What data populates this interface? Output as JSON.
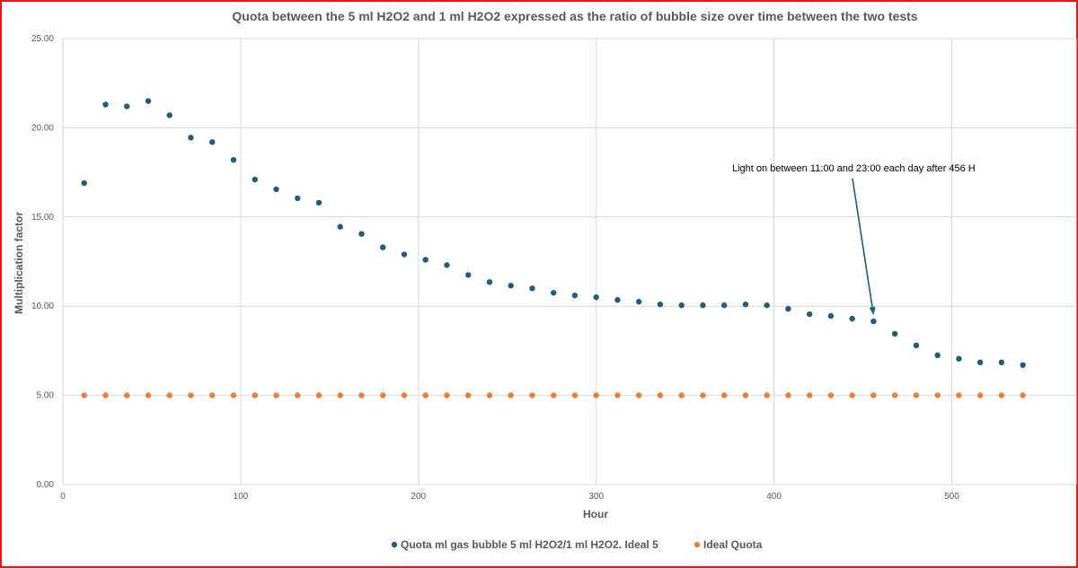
{
  "chart_data": {
    "type": "scatter",
    "title": "Quota between the 5 ml H2O2 and 1 ml H2O2 expressed as the ratio of bubble size over time between the two tests",
    "xlabel": "Hour",
    "ylabel": "Multiplication factor",
    "xlim": [
      0,
      570
    ],
    "ylim": [
      0,
      25
    ],
    "x_ticks": [
      "0",
      "100",
      "200",
      "300",
      "400",
      "500"
    ],
    "y_ticks": [
      "0.00",
      "5.00",
      "10.00",
      "15.00",
      "20.00",
      "25.00"
    ],
    "grid": "vertical and horizontal major gridlines",
    "legend_position": "bottom",
    "series": [
      {
        "name": "Quota ml gas bubble 5 ml H2O2/1 ml H2O2. Ideal 5",
        "color": "#1f5c80",
        "points": [
          [
            12,
            16.9
          ],
          [
            24,
            21.3
          ],
          [
            36,
            21.2
          ],
          [
            48,
            21.5
          ],
          [
            60,
            20.7
          ],
          [
            72,
            19.45
          ],
          [
            84,
            19.2
          ],
          [
            96,
            18.2
          ],
          [
            108,
            17.1
          ],
          [
            120,
            16.55
          ],
          [
            132,
            16.05
          ],
          [
            144,
            15.8
          ],
          [
            156,
            14.45
          ],
          [
            168,
            14.05
          ],
          [
            180,
            13.3
          ],
          [
            192,
            12.9
          ],
          [
            204,
            12.6
          ],
          [
            216,
            12.3
          ],
          [
            228,
            11.75
          ],
          [
            240,
            11.35
          ],
          [
            252,
            11.15
          ],
          [
            264,
            11.0
          ],
          [
            276,
            10.75
          ],
          [
            288,
            10.6
          ],
          [
            300,
            10.5
          ],
          [
            312,
            10.35
          ],
          [
            324,
            10.25
          ],
          [
            336,
            10.1
          ],
          [
            348,
            10.05
          ],
          [
            360,
            10.05
          ],
          [
            372,
            10.05
          ],
          [
            384,
            10.1
          ],
          [
            396,
            10.05
          ],
          [
            408,
            9.85
          ],
          [
            420,
            9.55
          ],
          [
            432,
            9.45
          ],
          [
            444,
            9.3
          ],
          [
            456,
            9.15
          ],
          [
            468,
            8.45
          ],
          [
            480,
            7.8
          ],
          [
            492,
            7.25
          ],
          [
            504,
            7.05
          ],
          [
            516,
            6.85
          ],
          [
            528,
            6.85
          ],
          [
            540,
            6.7
          ]
        ]
      },
      {
        "name": "Ideal Quota",
        "color": "#ed7d31",
        "points": [
          [
            12,
            5
          ],
          [
            24,
            5
          ],
          [
            36,
            5
          ],
          [
            48,
            5
          ],
          [
            60,
            5
          ],
          [
            72,
            5
          ],
          [
            84,
            5
          ],
          [
            96,
            5
          ],
          [
            108,
            5
          ],
          [
            120,
            5
          ],
          [
            132,
            5
          ],
          [
            144,
            5
          ],
          [
            156,
            5
          ],
          [
            168,
            5
          ],
          [
            180,
            5
          ],
          [
            192,
            5
          ],
          [
            204,
            5
          ],
          [
            216,
            5
          ],
          [
            228,
            5
          ],
          [
            240,
            5
          ],
          [
            252,
            5
          ],
          [
            264,
            5
          ],
          [
            276,
            5
          ],
          [
            288,
            5
          ],
          [
            300,
            5
          ],
          [
            312,
            5
          ],
          [
            324,
            5
          ],
          [
            336,
            5
          ],
          [
            348,
            5
          ],
          [
            360,
            5
          ],
          [
            372,
            5
          ],
          [
            384,
            5
          ],
          [
            396,
            5
          ],
          [
            408,
            5
          ],
          [
            420,
            5
          ],
          [
            432,
            5
          ],
          [
            444,
            5
          ],
          [
            456,
            5
          ],
          [
            468,
            5
          ],
          [
            480,
            5
          ],
          [
            492,
            5
          ],
          [
            504,
            5
          ],
          [
            516,
            5
          ],
          [
            528,
            5
          ],
          [
            540,
            5
          ]
        ]
      }
    ],
    "annotation": {
      "text": "Light on between 11:00 and 23:00 each day  after 456 H",
      "arrow_to": [
        456,
        9.5
      ],
      "arrow_color": "#1f5c80"
    }
  }
}
